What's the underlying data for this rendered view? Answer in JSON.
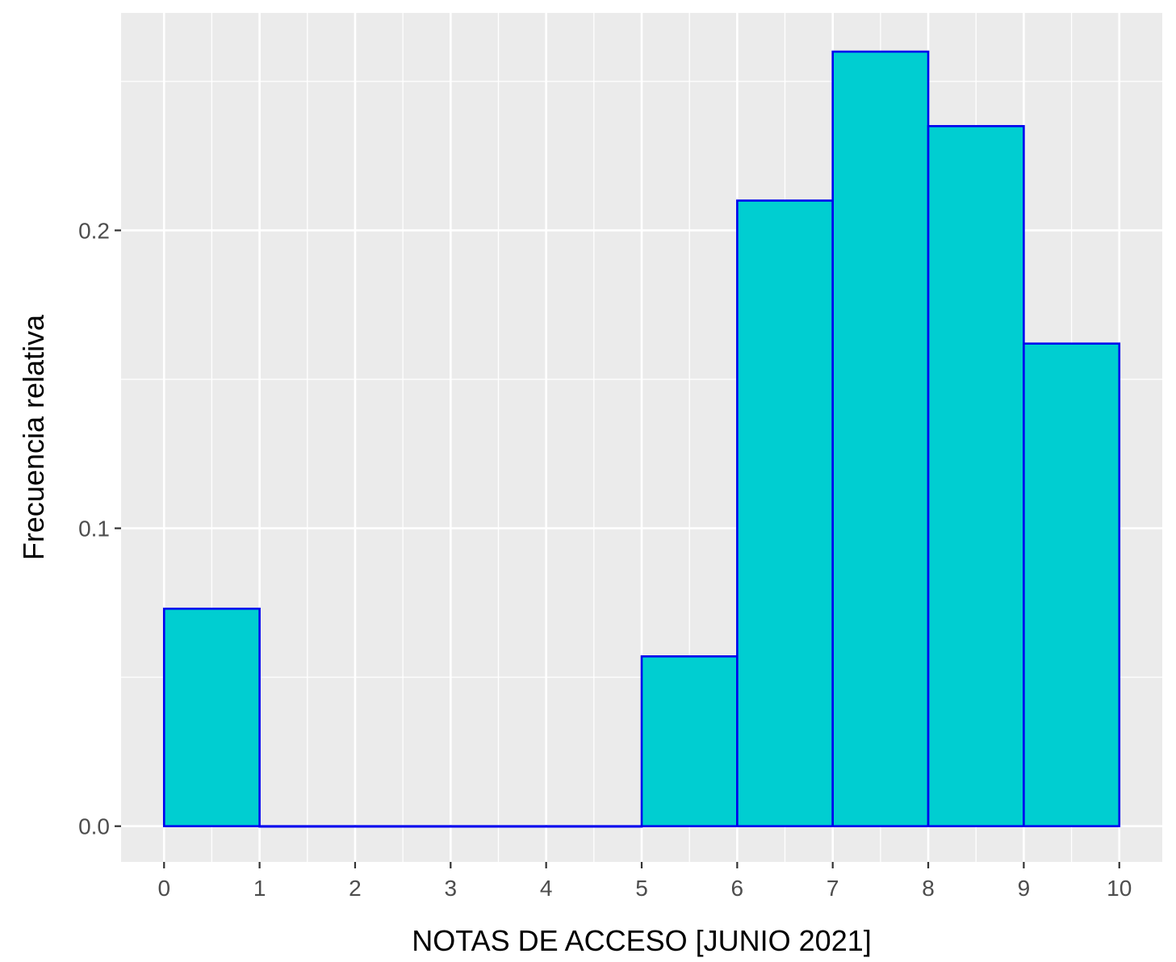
{
  "chart_data": {
    "type": "bar",
    "bins": [
      {
        "from": 0,
        "to": 1,
        "value": 0.073
      },
      {
        "from": 1,
        "to": 2,
        "value": 0.0
      },
      {
        "from": 2,
        "to": 3,
        "value": 0.0
      },
      {
        "from": 3,
        "to": 4,
        "value": 0.0
      },
      {
        "from": 4,
        "to": 5,
        "value": 0.0
      },
      {
        "from": 5,
        "to": 6,
        "value": 0.057
      },
      {
        "from": 6,
        "to": 7,
        "value": 0.21
      },
      {
        "from": 7,
        "to": 8,
        "value": 0.26
      },
      {
        "from": 8,
        "to": 9,
        "value": 0.235
      },
      {
        "from": 9,
        "to": 10,
        "value": 0.162
      }
    ],
    "xlabel": "NOTAS DE ACCESO  [JUNIO 2021]",
    "ylabel": "Frecuencia relativa",
    "x_ticks": [
      "0",
      "1",
      "2",
      "3",
      "4",
      "5",
      "6",
      "7",
      "8",
      "9",
      "10"
    ],
    "y_ticks": [
      "0.0",
      "0.1",
      "0.2"
    ],
    "xlim": [
      -0.45,
      10.45
    ],
    "ylim": [
      -0.012,
      0.273
    ],
    "grid": true,
    "colors": {
      "bar_fill": "#00CED1",
      "bar_stroke": "#0000EE",
      "panel_background": "#EBEBEB",
      "grid_line": "#FFFFFF"
    }
  }
}
